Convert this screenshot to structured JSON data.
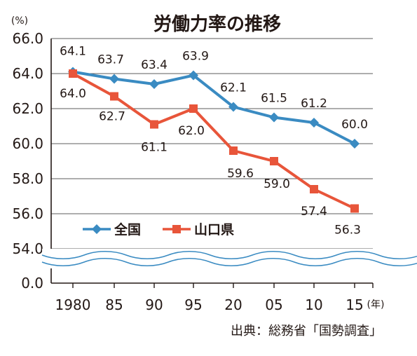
{
  "chart_data": {
    "type": "line",
    "title": "労働力率の推移",
    "y_unit": "(%)",
    "x_unit": "(年)",
    "source": "出典：総務省「国勢調査」",
    "categories": [
      "1980",
      "85",
      "90",
      "95",
      "20",
      "05",
      "10",
      "15"
    ],
    "y_ticks": [
      "66.0",
      "64.0",
      "62.0",
      "60.0",
      "58.0",
      "56.0",
      "54.0",
      "0.0"
    ],
    "ylim": [
      54,
      66
    ],
    "axis_break": true,
    "grid": true,
    "legend_position": "bottom-left",
    "series": [
      {
        "name": "全国",
        "color": "#3a8bc2",
        "marker": "diamond",
        "values": [
          64.1,
          63.7,
          63.4,
          63.9,
          62.1,
          61.5,
          61.2,
          60.0
        ],
        "labels": [
          "64.1",
          "63.7",
          "63.4",
          "63.9",
          "62.1",
          "61.5",
          "61.2",
          "60.0"
        ]
      },
      {
        "name": "山口県",
        "color": "#e8553a",
        "marker": "square",
        "values": [
          64.0,
          62.7,
          61.1,
          62.0,
          59.6,
          59.0,
          57.4,
          56.3
        ],
        "labels": [
          "64.0",
          "62.7",
          "61.1",
          "62.0",
          "59.6",
          "59.0",
          "57.4",
          "56.3"
        ]
      }
    ]
  }
}
